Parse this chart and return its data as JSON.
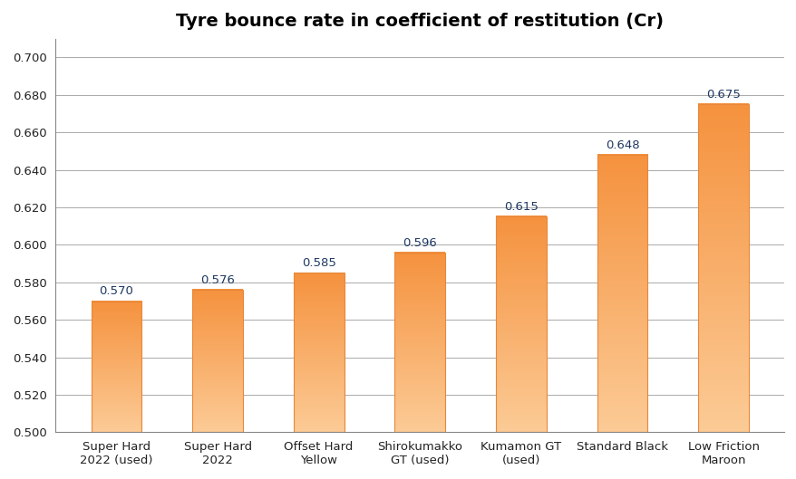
{
  "title": "Tyre bounce rate in coefficient of restitution (Cr)",
  "categories": [
    "Super Hard\n2022 (used)",
    "Super Hard\n2022",
    "Offset Hard\nYellow",
    "Shirokumakko\nGT (used)",
    "Kumamon GT\n(used)",
    "Standard Black",
    "Low Friction\nMaroon"
  ],
  "values": [
    0.57,
    0.576,
    0.585,
    0.596,
    0.615,
    0.648,
    0.675
  ],
  "bar_color_top": "#FCCB96",
  "bar_color_bottom": "#F5923E",
  "bar_edge_color": "#E8873A",
  "ylim_min": 0.5,
  "ylim_max": 0.71,
  "ytick_step": 0.02,
  "label_color": "#1F3864",
  "background_color": "#FFFFFF",
  "grid_color": "#AAAAAA",
  "title_fontsize": 14,
  "tick_fontsize": 9.5,
  "label_fontsize": 9.5,
  "bar_width": 0.5
}
